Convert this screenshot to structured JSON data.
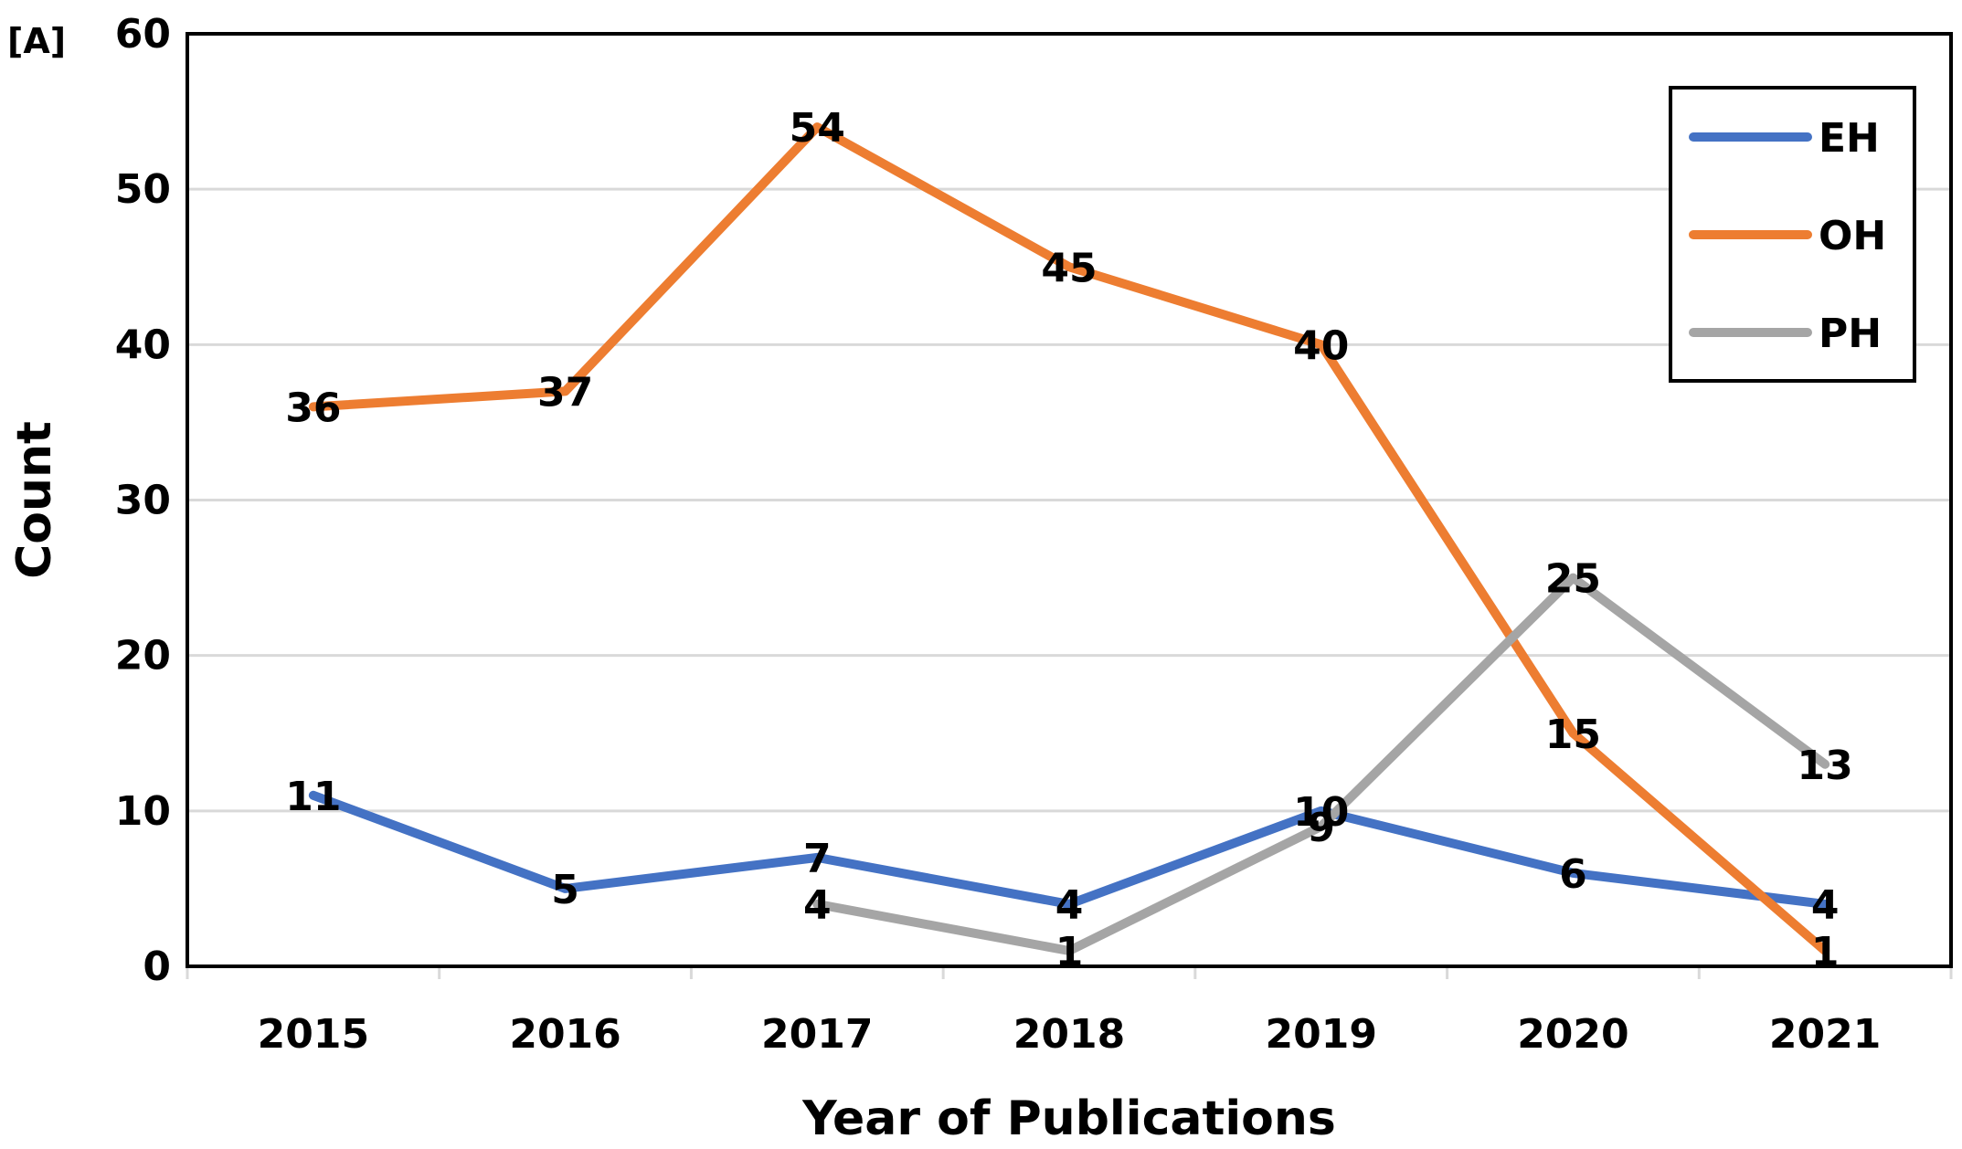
{
  "panel_label": "[A]",
  "chart_data": {
    "type": "line",
    "title": "",
    "xlabel": "Year of Publications",
    "ylabel": "Count",
    "categories": [
      "2015",
      "2016",
      "2017",
      "2018",
      "2019",
      "2020",
      "2021"
    ],
    "ylim": [
      0,
      60
    ],
    "yticks": [
      0,
      10,
      20,
      30,
      40,
      50,
      60
    ],
    "grid": true,
    "legend_position": "top-right",
    "series": [
      {
        "name": "EH",
        "color": "#4472C4",
        "values": [
          11,
          5,
          7,
          4,
          10,
          6,
          4
        ]
      },
      {
        "name": "OH",
        "color": "#ED7D31",
        "values": [
          36,
          37,
          54,
          45,
          40,
          15,
          1
        ]
      },
      {
        "name": "PH",
        "color": "#A5A5A5",
        "values": [
          null,
          null,
          4,
          1,
          9,
          25,
          13
        ]
      }
    ]
  }
}
